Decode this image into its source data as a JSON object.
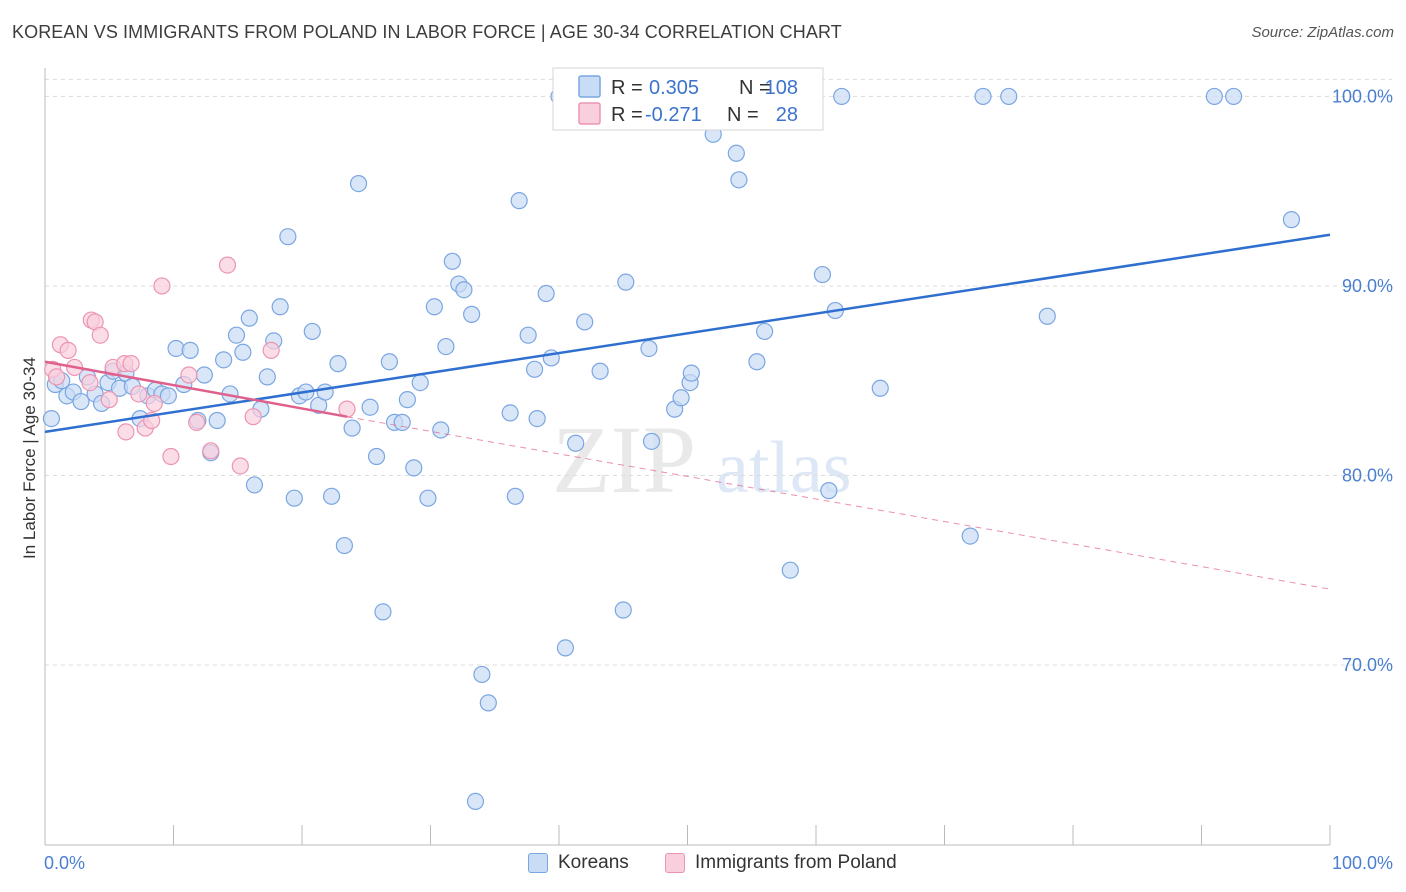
{
  "title": "KOREAN VS IMMIGRANTS FROM POLAND IN LABOR FORCE | AGE 30-34 CORRELATION CHART",
  "source": "Source: ZipAtlas.com",
  "watermark": {
    "zip": "ZIP",
    "atlas": "atlas"
  },
  "legend_box": {
    "rows": [
      {
        "r_label": "R =",
        "r_value": "0.305",
        "n_label": "N =",
        "n_value": "108",
        "color": "#6f9fe0"
      },
      {
        "r_label": "R =",
        "r_value": "-0.271",
        "n_label": "N =",
        "n_value": "28",
        "color": "#ef8fb0"
      }
    ]
  },
  "colors": {
    "koreans_fill": "#c9dcf5",
    "koreans_stroke": "#7aa6e2",
    "koreans_line": "#2f6fd0",
    "poland_fill": "#f9cfdd",
    "poland_stroke": "#eb95b3",
    "poland_line": "#e0608c",
    "grid": "#dcdcdc",
    "axis_label": "#4a7fd0"
  },
  "chart_data": {
    "type": "scatter",
    "title": "KOREAN VS IMMIGRANTS FROM POLAND IN LABOR FORCE | AGE 30-34 CORRELATION CHART",
    "xlabel": "",
    "ylabel": "In Labor Force | Age 30-34",
    "xlim": [
      0,
      100
    ],
    "ylim": [
      60.5,
      101.5
    ],
    "x_tick_labels": [
      "0.0%",
      "100.0%"
    ],
    "y_ticks": [
      70,
      80,
      90,
      100
    ],
    "y_tick_labels": [
      "70.0%",
      "80.0%",
      "90.0%",
      "100.0%"
    ],
    "grid": true,
    "legend_position": "bottom",
    "series": [
      {
        "name": "Koreans",
        "r": 0.305,
        "n": 108,
        "trend": {
          "x": [
            0,
            100
          ],
          "y": [
            82.3,
            92.7
          ]
        },
        "points": [
          [
            0.5,
            83.0
          ],
          [
            0.8,
            84.8
          ],
          [
            1.3,
            85.0
          ],
          [
            1.7,
            84.2
          ],
          [
            2.2,
            84.4
          ],
          [
            2.8,
            83.9
          ],
          [
            3.3,
            85.2
          ],
          [
            3.9,
            84.3
          ],
          [
            4.4,
            83.8
          ],
          [
            4.9,
            84.9
          ],
          [
            5.3,
            85.5
          ],
          [
            5.8,
            84.6
          ],
          [
            6.3,
            85.4
          ],
          [
            6.8,
            84.7
          ],
          [
            7.4,
            83.0
          ],
          [
            8.0,
            84.2
          ],
          [
            8.6,
            84.5
          ],
          [
            9.1,
            84.3
          ],
          [
            9.6,
            84.2
          ],
          [
            10.2,
            86.7
          ],
          [
            10.8,
            84.8
          ],
          [
            11.3,
            86.6
          ],
          [
            11.9,
            82.9
          ],
          [
            12.4,
            85.3
          ],
          [
            12.9,
            81.2
          ],
          [
            13.4,
            82.9
          ],
          [
            13.9,
            86.1
          ],
          [
            14.4,
            84.3
          ],
          [
            14.9,
            87.4
          ],
          [
            15.4,
            86.5
          ],
          [
            15.9,
            88.3
          ],
          [
            16.3,
            79.5
          ],
          [
            16.8,
            83.5
          ],
          [
            17.3,
            85.2
          ],
          [
            17.8,
            87.1
          ],
          [
            18.3,
            88.9
          ],
          [
            18.9,
            92.6
          ],
          [
            19.4,
            78.8
          ],
          [
            19.8,
            84.2
          ],
          [
            20.3,
            84.4
          ],
          [
            20.8,
            87.6
          ],
          [
            21.3,
            83.7
          ],
          [
            21.8,
            84.4
          ],
          [
            22.3,
            78.9
          ],
          [
            22.8,
            85.9
          ],
          [
            23.3,
            76.3
          ],
          [
            23.9,
            82.5
          ],
          [
            24.4,
            95.4
          ],
          [
            25.3,
            83.6
          ],
          [
            25.8,
            81.0
          ],
          [
            26.3,
            72.8
          ],
          [
            26.8,
            86.0
          ],
          [
            27.2,
            82.8
          ],
          [
            27.8,
            82.8
          ],
          [
            28.2,
            84.0
          ],
          [
            28.7,
            80.4
          ],
          [
            29.2,
            84.9
          ],
          [
            29.8,
            78.8
          ],
          [
            30.3,
            88.9
          ],
          [
            30.8,
            82.4
          ],
          [
            31.2,
            86.8
          ],
          [
            31.7,
            91.3
          ],
          [
            32.2,
            90.1
          ],
          [
            32.6,
            89.8
          ],
          [
            33.2,
            88.5
          ],
          [
            33.5,
            62.8
          ],
          [
            34.0,
            69.5
          ],
          [
            34.5,
            68.0
          ],
          [
            36.2,
            83.3
          ],
          [
            36.6,
            78.9
          ],
          [
            36.9,
            94.5
          ],
          [
            37.6,
            87.4
          ],
          [
            38.1,
            85.6
          ],
          [
            38.3,
            83.0
          ],
          [
            39.0,
            89.6
          ],
          [
            39.4,
            86.2
          ],
          [
            40.0,
            100.0
          ],
          [
            40.5,
            70.9
          ],
          [
            41.3,
            81.7
          ],
          [
            42.0,
            88.1
          ],
          [
            43.2,
            85.5
          ],
          [
            45.0,
            72.9
          ],
          [
            45.2,
            90.2
          ],
          [
            47.0,
            86.7
          ],
          [
            47.2,
            81.8
          ],
          [
            49.0,
            83.5
          ],
          [
            49.5,
            84.1
          ],
          [
            50.2,
            84.9
          ],
          [
            50.3,
            85.4
          ],
          [
            52.0,
            98.0
          ],
          [
            53.4,
            100.0
          ],
          [
            53.8,
            97.0
          ],
          [
            54.0,
            95.6
          ],
          [
            55.4,
            86.0
          ],
          [
            56.0,
            87.6
          ],
          [
            58.0,
            75.0
          ],
          [
            60.5,
            90.6
          ],
          [
            61.0,
            79.2
          ],
          [
            61.5,
            88.7
          ],
          [
            62.0,
            100.0
          ],
          [
            65.0,
            84.6
          ],
          [
            72.0,
            76.8
          ],
          [
            73.0,
            100.0
          ],
          [
            75.0,
            100.0
          ],
          [
            91.0,
            100.0
          ],
          [
            97.0,
            93.5
          ],
          [
            92.5,
            100.0
          ],
          [
            78.0,
            88.4
          ]
        ]
      },
      {
        "name": "Immigrants from Poland",
        "r": -0.271,
        "n": 28,
        "trend": {
          "x": [
            0,
            23.5
          ],
          "y": [
            86.0,
            83.1
          ]
        },
        "trend_extension": {
          "x": [
            23.5,
            100
          ],
          "y": [
            83.1,
            74.0
          ]
        },
        "points": [
          [
            0.6,
            85.6
          ],
          [
            0.9,
            85.2
          ],
          [
            1.2,
            86.9
          ],
          [
            1.8,
            86.6
          ],
          [
            2.3,
            85.7
          ],
          [
            3.5,
            84.9
          ],
          [
            3.6,
            88.2
          ],
          [
            3.9,
            88.1
          ],
          [
            4.3,
            87.4
          ],
          [
            5.0,
            84.0
          ],
          [
            5.3,
            85.7
          ],
          [
            6.2,
            85.9
          ],
          [
            6.3,
            82.3
          ],
          [
            6.7,
            85.9
          ],
          [
            7.3,
            84.3
          ],
          [
            7.8,
            82.5
          ],
          [
            8.3,
            82.9
          ],
          [
            8.5,
            83.8
          ],
          [
            9.1,
            90.0
          ],
          [
            9.8,
            81.0
          ],
          [
            11.2,
            85.3
          ],
          [
            11.8,
            82.8
          ],
          [
            12.9,
            81.3
          ],
          [
            14.2,
            91.1
          ],
          [
            15.2,
            80.5
          ],
          [
            16.2,
            83.1
          ],
          [
            17.6,
            86.6
          ],
          [
            23.5,
            83.5
          ]
        ]
      }
    ]
  },
  "bottom_legend": [
    {
      "label": "Koreans"
    },
    {
      "label": "Immigrants from Poland"
    }
  ]
}
